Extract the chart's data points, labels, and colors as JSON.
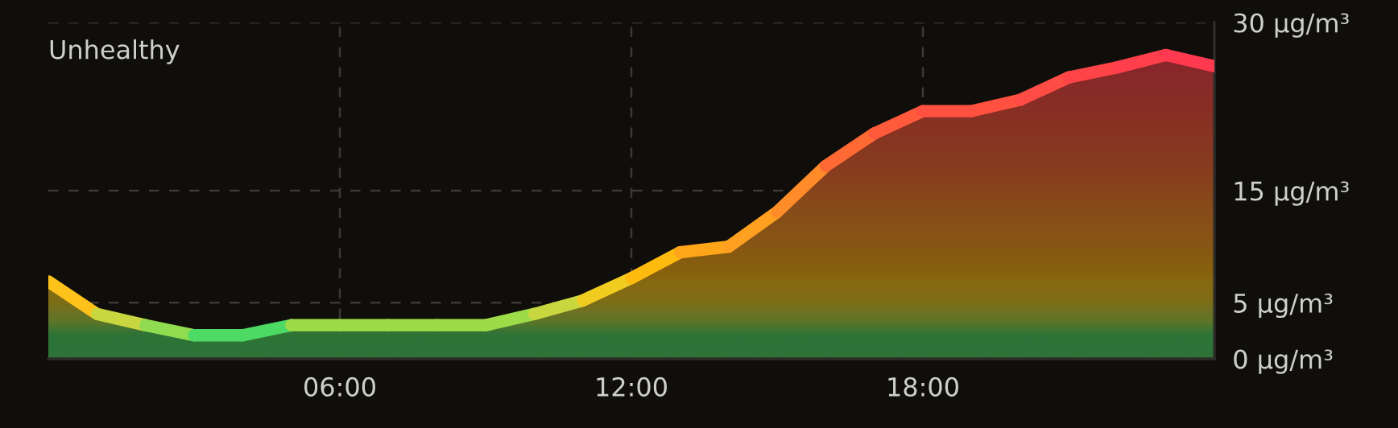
{
  "chart_data": {
    "type": "area",
    "annotations": [
      "Unhealthy"
    ],
    "x": [
      0,
      1,
      2,
      3,
      4,
      5,
      6,
      7,
      8,
      9,
      10,
      11,
      12,
      13,
      14,
      15,
      16,
      17,
      18,
      19,
      20,
      21,
      22,
      23,
      24
    ],
    "series": [
      {
        "color": "#0f0e0a",
        "values": [
          6.9,
          4.0,
          3.0,
          2.1,
          2.1,
          3.0,
          3.0,
          3.0,
          3.0,
          3.0,
          4.0,
          5.2,
          7.2,
          9.5,
          10.0,
          13.1,
          17.2,
          20.1,
          22.1,
          22.1,
          23.1,
          25.1,
          26.0,
          27.1,
          26.1
        ],
        "colors": [
          "#ffc21a",
          "#c8d640",
          "#90dc50",
          "#4cd964",
          "#4cd964",
          "#9ddc48",
          "#9ddc48",
          "#9ddc48",
          "#9ddc48",
          "#9ddc48",
          "#c8d640",
          "#f0cc20",
          "#ffba10",
          "#ffa51a",
          "#ffa020",
          "#ff8c28",
          "#ff6a34",
          "#ff5a3c",
          "#ff5040",
          "#ff5040",
          "#ff4c44",
          "#ff4448",
          "#ff404c",
          "#ff3a50",
          "#ff3e4e"
        ]
      }
    ],
    "xlim": [
      0,
      24
    ],
    "xticks": [
      {
        "value": 6,
        "label": "06:00"
      },
      {
        "value": 12,
        "label": "12:00"
      },
      {
        "value": 18,
        "label": "18:00"
      }
    ],
    "ylim": [
      0,
      30
    ],
    "yticks": [
      {
        "value": 0,
        "label": "0 µg/m³"
      },
      {
        "value": 5,
        "label": "5 µg/m³"
      },
      {
        "value": 15,
        "label": "15 µg/m³"
      },
      {
        "value": 30,
        "label": "30 µg/m³"
      }
    ],
    "grid": true
  }
}
